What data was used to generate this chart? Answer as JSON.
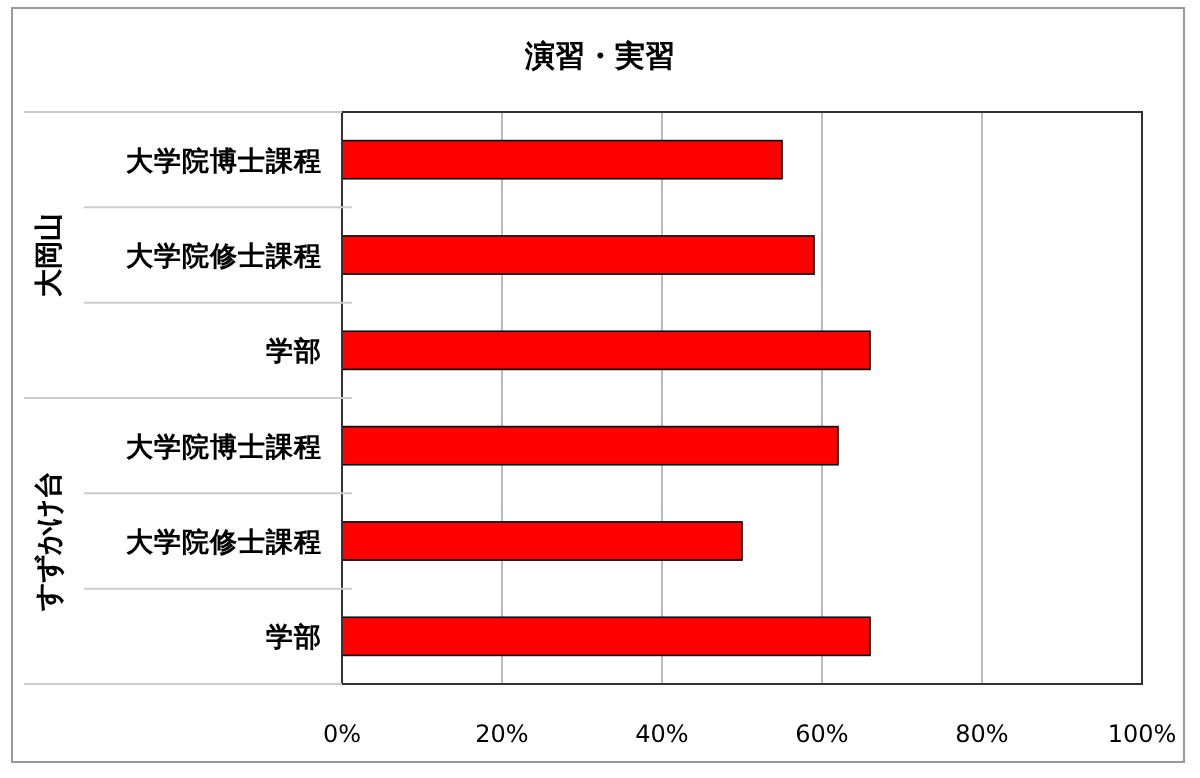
{
  "chart_data": {
    "type": "bar",
    "orientation": "horizontal",
    "title": "演習・実習",
    "categories": [
      "大学院博士課程",
      "大学院修士課程",
      "学部",
      "大学院博士課程",
      "大学院修士課程",
      "学部"
    ],
    "values": [
      55,
      59,
      66,
      62,
      50,
      66
    ],
    "color": "#ff0000",
    "xlim": [
      0,
      100
    ],
    "xticks": [
      {
        "value": 0,
        "label": "0%"
      },
      {
        "value": 20,
        "label": "20%"
      },
      {
        "value": 40,
        "label": "40%"
      },
      {
        "value": 60,
        "label": "60%"
      },
      {
        "value": 80,
        "label": "80%"
      },
      {
        "value": 100,
        "label": "100%"
      }
    ],
    "grid": "x",
    "annotations": [
      "大岡山",
      "すずかけ台"
    ]
  }
}
